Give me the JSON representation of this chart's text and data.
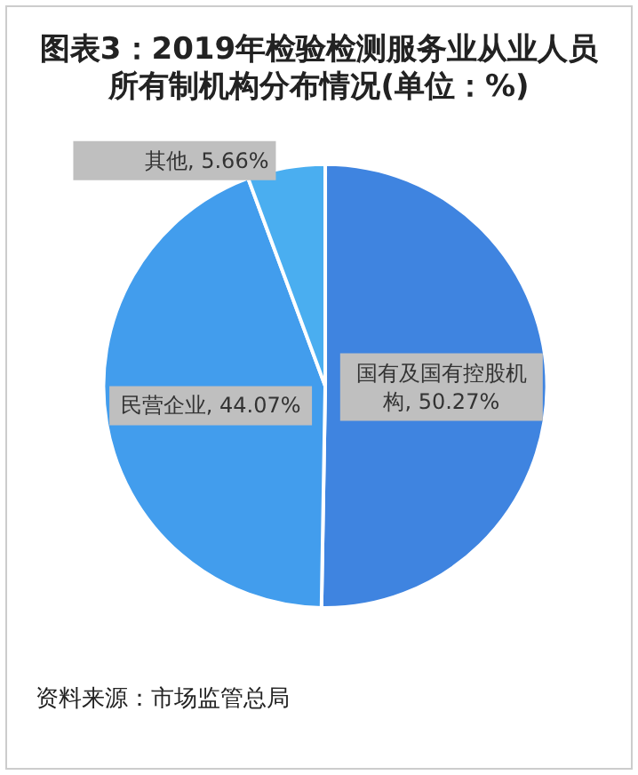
{
  "chart_data": {
    "type": "pie",
    "title": "图表3：2019年检验检测服务业从业人员所有制机构分布情况(单位：%)",
    "categories": [
      "国有及国有控股机构",
      "民营企业",
      "其他"
    ],
    "values": [
      50.27,
      44.07,
      5.66
    ],
    "colors": [
      "#3f84e0",
      "#429ded",
      "#4aaef0"
    ],
    "value_labels": [
      "50.27%",
      "44.07%",
      "5.66%"
    ],
    "legend": false,
    "annotations": [
      "资料来源：市场监管总局"
    ]
  }
}
